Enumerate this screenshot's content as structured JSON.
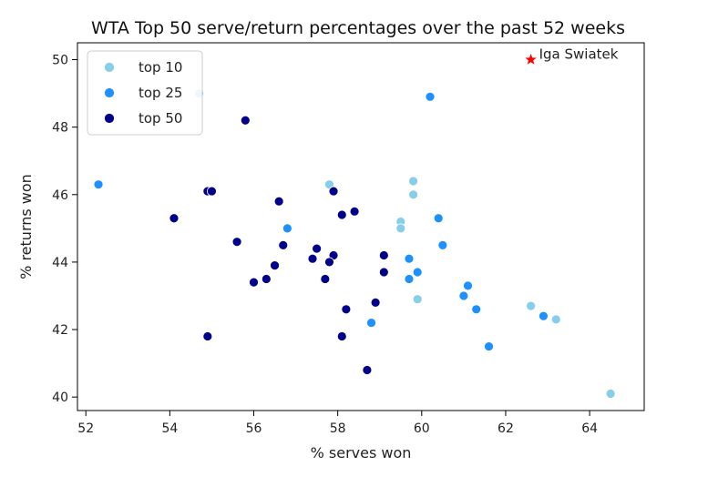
{
  "chart_data": {
    "type": "scatter",
    "title": "WTA Top 50 serve/return percentages over the past 52 weeks",
    "xlabel": "% serves won",
    "ylabel": "% returns won",
    "xlim": [
      51.8,
      65.3
    ],
    "ylim": [
      39.6,
      50.5
    ],
    "xticks": [
      52,
      54,
      56,
      58,
      60,
      62,
      64
    ],
    "yticks": [
      40,
      42,
      44,
      46,
      48,
      50
    ],
    "grid": false,
    "legend_position": "top-left",
    "series": [
      {
        "name": "top 10",
        "color": "#87ceeb",
        "points": [
          [
            54.7,
            49.0
          ],
          [
            57.8,
            46.3
          ],
          [
            59.8,
            46.4
          ],
          [
            59.8,
            46.0
          ],
          [
            59.5,
            45.2
          ],
          [
            59.5,
            45.0
          ],
          [
            59.9,
            42.9
          ],
          [
            62.6,
            42.7
          ],
          [
            63.2,
            42.3
          ],
          [
            64.5,
            40.1
          ]
        ]
      },
      {
        "name": "top 25",
        "color": "#1e90ff",
        "points": [
          [
            52.3,
            46.3
          ],
          [
            60.2,
            48.9
          ],
          [
            56.8,
            45.0
          ],
          [
            60.4,
            45.3
          ],
          [
            60.5,
            44.5
          ],
          [
            59.7,
            44.1
          ],
          [
            59.9,
            43.7
          ],
          [
            59.7,
            43.5
          ],
          [
            61.1,
            43.3
          ],
          [
            61.0,
            43.0
          ],
          [
            61.3,
            42.6
          ],
          [
            62.9,
            42.4
          ],
          [
            58.8,
            42.2
          ],
          [
            61.6,
            41.5
          ]
        ]
      },
      {
        "name": "top 50",
        "color": "#00008b",
        "points": [
          [
            55.8,
            48.2
          ],
          [
            54.9,
            46.1
          ],
          [
            55.0,
            46.1
          ],
          [
            57.9,
            46.1
          ],
          [
            56.6,
            45.8
          ],
          [
            58.4,
            45.5
          ],
          [
            58.1,
            45.4
          ],
          [
            54.1,
            45.3
          ],
          [
            55.6,
            44.6
          ],
          [
            56.7,
            44.5
          ],
          [
            57.5,
            44.4
          ],
          [
            57.9,
            44.2
          ],
          [
            59.1,
            44.2
          ],
          [
            57.4,
            44.1
          ],
          [
            57.8,
            44.0
          ],
          [
            56.5,
            43.9
          ],
          [
            59.1,
            43.7
          ],
          [
            56.3,
            43.5
          ],
          [
            57.7,
            43.5
          ],
          [
            56.0,
            43.4
          ],
          [
            58.9,
            42.8
          ],
          [
            58.2,
            42.6
          ],
          [
            54.9,
            41.8
          ],
          [
            58.1,
            41.8
          ],
          [
            58.7,
            40.8
          ]
        ]
      }
    ],
    "highlight": {
      "label": "Iga Swiatek",
      "x": 62.6,
      "y": 50.0,
      "color": "#ff0000",
      "marker": "star"
    }
  }
}
